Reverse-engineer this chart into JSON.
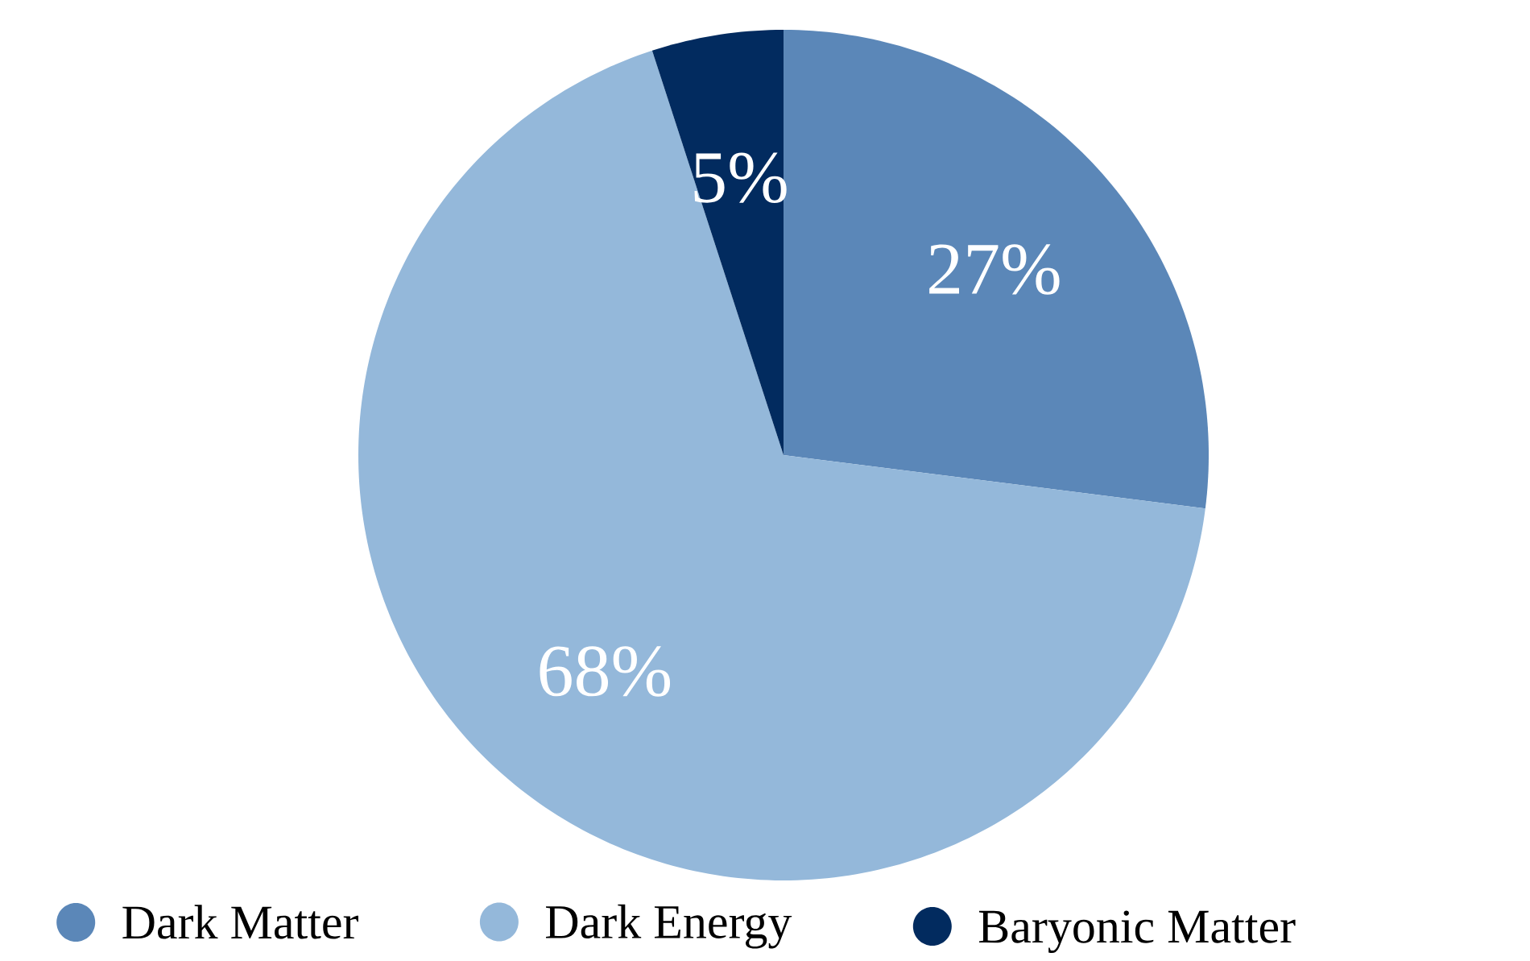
{
  "chart_data": {
    "type": "pie",
    "categories": [
      "Dark Matter",
      "Dark Energy",
      "Baryonic Matter"
    ],
    "values": [
      27,
      68,
      5
    ],
    "colors": [
      "#5b87b8",
      "#94b8da",
      "#022b5f"
    ],
    "value_labels": [
      "27%",
      "68%",
      "5%"
    ],
    "legend": "bottom"
  }
}
